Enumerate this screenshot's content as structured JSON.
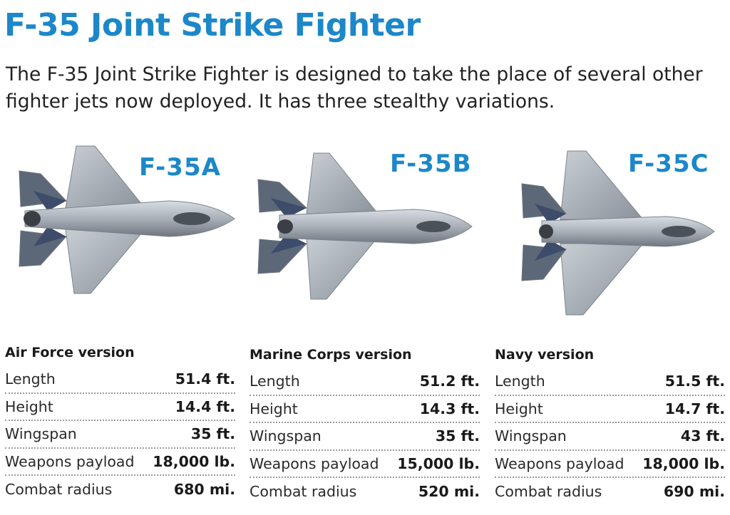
{
  "title": "F-35 Joint Strike Fighter",
  "subtitle": "The F-35 Joint Strike Fighter is designed to take the place of several other fighter jets now deployed. It has three stealthy variations.",
  "colors": {
    "accent": "#1c87c9",
    "text": "#222222",
    "divider": "#9a9a9a"
  },
  "variants": [
    {
      "name": "F-35A",
      "version": "Air Force version",
      "specs": [
        {
          "label": "Length",
          "value": "51.4 ft."
        },
        {
          "label": "Height",
          "value": "14.4 ft."
        },
        {
          "label": "Wingspan",
          "value": "35 ft."
        },
        {
          "label": "Weapons payload",
          "value": "18,000 lb."
        },
        {
          "label": "Combat radius",
          "value": "680 mi."
        }
      ]
    },
    {
      "name": "F-35B",
      "version": "Marine Corps version",
      "specs": [
        {
          "label": "Length",
          "value": "51.2 ft."
        },
        {
          "label": "Height",
          "value": "14.3 ft."
        },
        {
          "label": "Wingspan",
          "value": "35 ft."
        },
        {
          "label": "Weapons payload",
          "value": "15,000 lb."
        },
        {
          "label": "Combat radius",
          "value": "520 mi."
        }
      ]
    },
    {
      "name": "F-35C",
      "version": "Navy version",
      "specs": [
        {
          "label": "Length",
          "value": "51.5 ft."
        },
        {
          "label": "Height",
          "value": "14.7 ft."
        },
        {
          "label": "Wingspan",
          "value": "43 ft."
        },
        {
          "label": "Weapons payload",
          "value": "18,000 lb."
        },
        {
          "label": "Combat radius",
          "value": "690 mi."
        }
      ]
    }
  ]
}
